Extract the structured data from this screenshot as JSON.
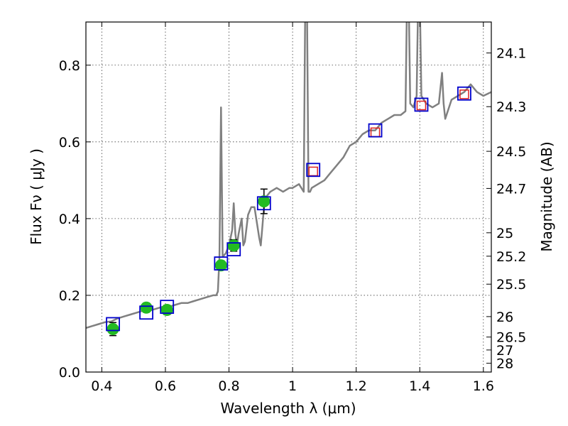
{
  "chart_data": {
    "type": "scatter",
    "title": "",
    "xlabel": "Wavelength  λ (μm)",
    "ylabel": "Flux  Fν  ( μJy )",
    "y2label": "Magnitude (AB)",
    "xlim": [
      0.35,
      1.625
    ],
    "ylim": [
      0.0,
      0.9125
    ],
    "grid": true,
    "legend": "none",
    "xticks": [
      {
        "value": 0.4,
        "label": "0.4"
      },
      {
        "value": 0.6,
        "label": "0.6"
      },
      {
        "value": 0.8,
        "label": "0.8"
      },
      {
        "value": 1.0,
        "label": "1"
      },
      {
        "value": 1.2,
        "label": "1.2"
      },
      {
        "value": 1.4,
        "label": "1.4"
      },
      {
        "value": 1.6,
        "label": "1.6"
      }
    ],
    "yticks": [
      {
        "value": 0.0,
        "label": "0.0"
      },
      {
        "value": 0.2,
        "label": "0.2"
      },
      {
        "value": 0.4,
        "label": "0.4"
      },
      {
        "value": 0.6,
        "label": "0.6"
      },
      {
        "value": 0.8,
        "label": "0.8"
      }
    ],
    "mag_ticks": [
      {
        "mag": 24.1,
        "label": "24.1"
      },
      {
        "mag": 24.3,
        "label": "24.3"
      },
      {
        "mag": 24.5,
        "label": "24.5"
      },
      {
        "mag": 24.7,
        "label": "24.7"
      },
      {
        "mag": 25.0,
        "label": "25"
      },
      {
        "mag": 25.2,
        "label": "25.2"
      },
      {
        "mag": 25.5,
        "label": "25.5"
      },
      {
        "mag": 26.0,
        "label": "26"
      },
      {
        "mag": 26.5,
        "label": "26.5"
      },
      {
        "mag": 27.0,
        "label": "27"
      },
      {
        "mag": 28.0,
        "label": "28"
      }
    ],
    "colors": {
      "spectrum": "#808080",
      "observed": "#22bb22",
      "model_box": "#0000cc",
      "upper_box": "#dd2222",
      "errorbar": "#000000"
    },
    "series": [
      {
        "kind": "spectrum",
        "x": [
          0.35,
          0.37,
          0.39,
          0.41,
          0.43,
          0.45,
          0.47,
          0.49,
          0.51,
          0.53,
          0.55,
          0.57,
          0.59,
          0.61,
          0.63,
          0.65,
          0.67,
          0.69,
          0.71,
          0.73,
          0.75,
          0.76,
          0.765,
          0.77,
          0.775,
          0.78,
          0.79,
          0.8,
          0.81,
          0.815,
          0.82,
          0.825,
          0.83,
          0.84,
          0.845,
          0.85,
          0.86,
          0.87,
          0.88,
          0.895,
          0.9,
          0.905,
          0.91,
          0.92,
          0.93,
          0.95,
          0.97,
          0.99,
          1.0,
          1.02,
          1.035,
          1.04,
          1.045,
          1.05,
          1.055,
          1.06,
          1.08,
          1.1,
          1.12,
          1.14,
          1.16,
          1.18,
          1.2,
          1.22,
          1.24,
          1.26,
          1.28,
          1.3,
          1.32,
          1.34,
          1.355,
          1.36,
          1.365,
          1.37,
          1.38,
          1.39,
          1.395,
          1.4,
          1.405,
          1.42,
          1.44,
          1.46,
          1.47,
          1.475,
          1.48,
          1.5,
          1.52,
          1.54,
          1.56,
          1.58,
          1.6,
          1.625
        ],
        "y": [
          0.115,
          0.12,
          0.125,
          0.13,
          0.132,
          0.14,
          0.145,
          0.15,
          0.155,
          0.16,
          0.16,
          0.165,
          0.17,
          0.17,
          0.175,
          0.18,
          0.18,
          0.185,
          0.19,
          0.195,
          0.2,
          0.2,
          0.21,
          0.3,
          0.69,
          0.3,
          0.31,
          0.33,
          0.37,
          0.44,
          0.36,
          0.33,
          0.36,
          0.4,
          0.33,
          0.34,
          0.41,
          0.43,
          0.43,
          0.35,
          0.33,
          0.38,
          0.43,
          0.46,
          0.47,
          0.48,
          0.47,
          0.48,
          0.48,
          0.49,
          0.47,
          0.98,
          0.98,
          0.47,
          0.47,
          0.48,
          0.49,
          0.5,
          0.52,
          0.54,
          0.56,
          0.59,
          0.6,
          0.62,
          0.63,
          0.63,
          0.65,
          0.66,
          0.67,
          0.67,
          0.68,
          0.98,
          0.98,
          0.7,
          0.69,
          0.72,
          0.98,
          0.98,
          0.72,
          0.7,
          0.69,
          0.7,
          0.78,
          0.7,
          0.66,
          0.71,
          0.72,
          0.73,
          0.75,
          0.73,
          0.72,
          0.73
        ]
      },
      {
        "kind": "observed",
        "x": [
          0.435,
          0.54,
          0.605,
          0.775,
          0.815,
          0.91
        ],
        "y": [
          0.112,
          0.168,
          0.162,
          0.278,
          0.33,
          0.445
        ],
        "yerr": [
          0.017,
          0.012,
          0.012,
          0.012,
          0.015,
          0.032
        ]
      },
      {
        "kind": "model",
        "x": [
          0.435,
          0.54,
          0.605,
          0.775,
          0.815,
          0.91,
          1.065,
          1.26,
          1.405,
          1.54
        ],
        "y": [
          0.125,
          0.155,
          0.17,
          0.283,
          0.32,
          0.44,
          0.527,
          0.63,
          0.697,
          0.726
        ]
      },
      {
        "kind": "upper",
        "x": [
          1.065,
          1.26,
          1.405,
          1.54
        ],
        "y": [
          0.523,
          0.625,
          0.695,
          0.724
        ]
      }
    ]
  }
}
